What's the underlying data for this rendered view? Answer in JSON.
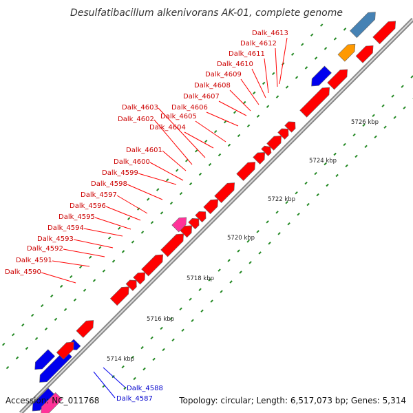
{
  "title": "Desulfatibacillum alkenivorans AK-01, complete genome",
  "footer": {
    "accession": "Accession: NC_011768",
    "summary": "Topology: circular; Length: 6,517,073 bp; Genes: 5,314"
  },
  "colors": {
    "forward_gene": "#ff0000",
    "reverse_gene": "#0000ee",
    "rna": "#ff3399",
    "other_a": "#4682b4",
    "other_b": "#ff9900",
    "tick": "#228822",
    "backbone": "#999999"
  },
  "kbp_labels": [
    "5714 kbp",
    "5716 kbp",
    "5718 kbp",
    "5720 kbp",
    "5722 kbp",
    "5724 kbp",
    "5726 kbp"
  ],
  "gene_labels": {
    "red": [
      "Dalk_4590",
      "Dalk_4591",
      "Dalk_4592",
      "Dalk_4593",
      "Dalk_4594",
      "Dalk_4595",
      "Dalk_4596",
      "Dalk_4597",
      "Dalk_4598",
      "Dalk_4599",
      "Dalk_4600",
      "Dalk_4601",
      "Dalk_4602",
      "Dalk_4603",
      "Dalk_4604",
      "Dalk_4605",
      "Dalk_4606",
      "Dalk_4607",
      "Dalk_4608",
      "Dalk_4609",
      "Dalk_4610",
      "Dalk_4611",
      "Dalk_4612",
      "Dalk_4613"
    ],
    "blue": [
      "Dalk_4588",
      "Dalk_4587"
    ]
  }
}
